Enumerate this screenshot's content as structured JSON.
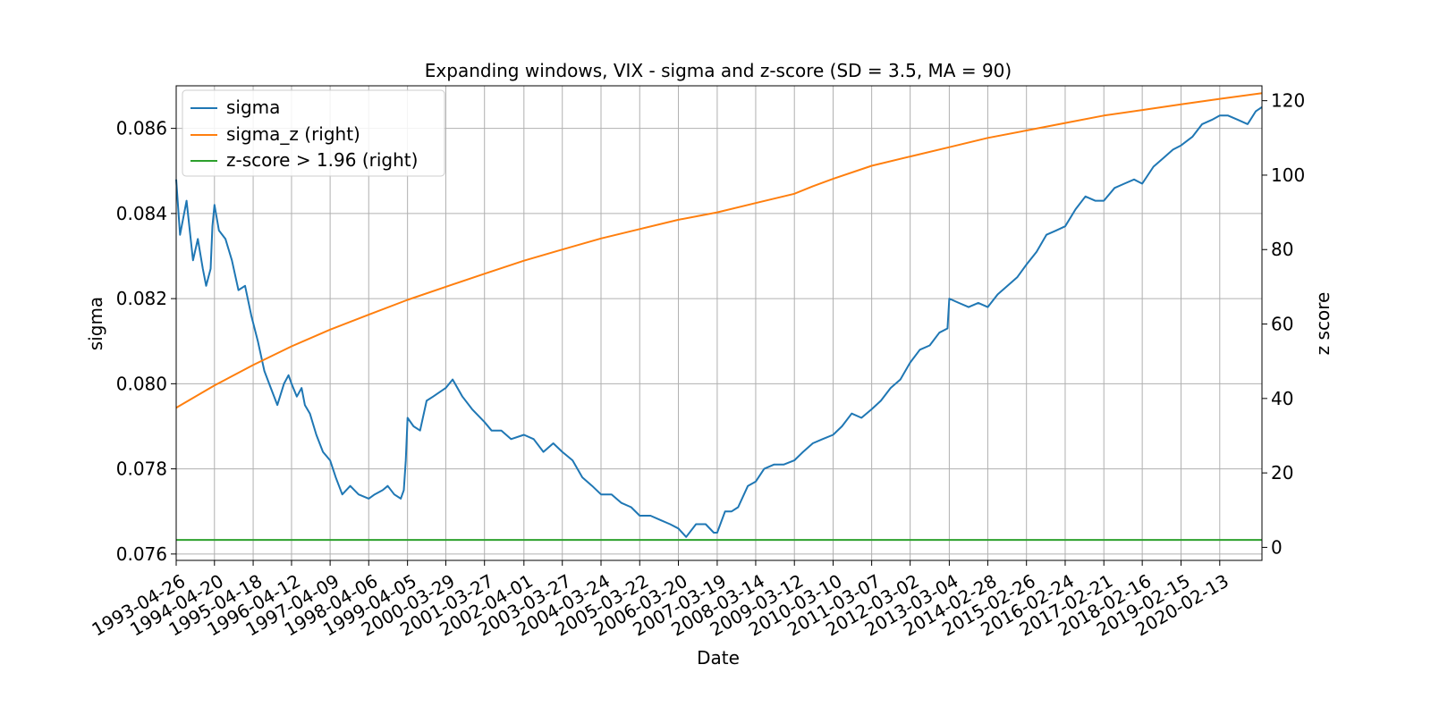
{
  "chart_data": {
    "type": "line",
    "title": "Expanding windows, VIX - sigma and z-score (SD = 3.5, MA = 90)",
    "xlabel": "Date",
    "ylabel": "sigma",
    "ylabel_right": "z score",
    "grid": true,
    "legend_position": "upper-left",
    "xlim": [
      "1993-04-26",
      "2021-03-15"
    ],
    "ylim": [
      0.07585,
      0.087
    ],
    "ylim_right": [
      -3.5,
      124
    ],
    "x_ticks": [
      "1993-04-26",
      "1994-04-20",
      "1995-04-18",
      "1996-04-12",
      "1997-04-09",
      "1998-04-06",
      "1999-04-05",
      "2000-03-29",
      "2001-03-27",
      "2002-04-01",
      "2003-03-27",
      "2004-03-24",
      "2005-03-22",
      "2006-03-20",
      "2007-03-19",
      "2008-03-14",
      "2009-03-12",
      "2010-03-10",
      "2011-03-07",
      "2012-03-02",
      "2013-03-04",
      "2014-02-28",
      "2015-02-26",
      "2016-02-24",
      "2017-02-21",
      "2018-02-16",
      "2019-02-15",
      "2020-02-13"
    ],
    "y_ticks": [
      "0.076",
      "0.078",
      "0.080",
      "0.082",
      "0.084",
      "0.086"
    ],
    "y_ticks_right": [
      "0",
      "20",
      "40",
      "60",
      "80",
      "100",
      "120"
    ],
    "series": [
      {
        "name": "sigma",
        "axis": "left",
        "color": "#1f77b4",
        "x": [
          "1993-04-26",
          "1993-06-01",
          "1993-08-01",
          "1993-10-01",
          "1993-11-15",
          "1994-01-01",
          "1994-02-01",
          "1994-03-15",
          "1994-04-01",
          "1994-04-20",
          "1994-06-01",
          "1994-08-01",
          "1994-10-01",
          "1994-12-01",
          "1995-02-01",
          "1995-04-01",
          "1995-06-01",
          "1995-08-01",
          "1995-10-01",
          "1995-12-01",
          "1996-02-01",
          "1996-03-15",
          "1996-04-12",
          "1996-06-01",
          "1996-07-15",
          "1996-08-15",
          "1996-10-01",
          "1996-12-01",
          "1997-02-01",
          "1997-04-09",
          "1997-06-01",
          "1997-08-01",
          "1997-10-15",
          "1998-01-01",
          "1998-04-06",
          "1998-06-01",
          "1998-08-15",
          "1998-10-01",
          "1998-12-01",
          "1999-02-01",
          "1999-03-01",
          "1999-03-20",
          "1999-04-05",
          "1999-06-01",
          "1999-08-01",
          "1999-10-01",
          "1999-12-01",
          "2000-03-29",
          "2000-06-01",
          "2000-09-01",
          "2000-12-01",
          "2001-03-27",
          "2001-06-01",
          "2001-09-01",
          "2001-12-01",
          "2002-04-01",
          "2002-07-01",
          "2002-10-01",
          "2003-01-01",
          "2003-03-27",
          "2003-07-01",
          "2003-10-01",
          "2004-01-01",
          "2004-03-24",
          "2004-07-01",
          "2004-10-01",
          "2005-01-01",
          "2005-03-22",
          "2005-07-01",
          "2005-10-01",
          "2006-01-01",
          "2006-03-20",
          "2006-06-01",
          "2006-09-01",
          "2006-12-01",
          "2007-02-15",
          "2007-03-19",
          "2007-06-01",
          "2007-08-01",
          "2007-10-01",
          "2008-01-01",
          "2008-03-14",
          "2008-06-01",
          "2008-09-01",
          "2008-12-01",
          "2009-03-12",
          "2009-06-01",
          "2009-09-01",
          "2009-12-01",
          "2010-03-10",
          "2010-06-01",
          "2010-09-01",
          "2010-12-01",
          "2011-03-07",
          "2011-06-01",
          "2011-09-01",
          "2011-12-01",
          "2012-03-02",
          "2012-06-01",
          "2012-09-01",
          "2012-12-01",
          "2013-02-15",
          "2013-03-04",
          "2013-06-01",
          "2013-09-01",
          "2013-12-01",
          "2014-02-28",
          "2014-06-01",
          "2014-09-01",
          "2014-12-01",
          "2015-02-26",
          "2015-06-01",
          "2015-09-01",
          "2015-12-01",
          "2016-02-24",
          "2016-06-01",
          "2016-09-01",
          "2016-12-01",
          "2017-02-21",
          "2017-06-01",
          "2017-09-01",
          "2017-12-01",
          "2018-02-16",
          "2018-06-01",
          "2018-09-01",
          "2018-12-01",
          "2019-02-15",
          "2019-06-01",
          "2019-09-01",
          "2019-12-01",
          "2020-02-13",
          "2020-05-01",
          "2020-08-01",
          "2020-11-01",
          "2021-01-15",
          "2021-03-15"
        ],
        "values": [
          0.0848,
          0.0835,
          0.0843,
          0.0829,
          0.0834,
          0.0827,
          0.0823,
          0.0827,
          0.0837,
          0.0842,
          0.0836,
          0.0834,
          0.0829,
          0.0822,
          0.0823,
          0.0816,
          0.081,
          0.0803,
          0.0799,
          0.0795,
          0.08,
          0.0802,
          0.08,
          0.0797,
          0.0799,
          0.0795,
          0.0793,
          0.0788,
          0.0784,
          0.0782,
          0.0778,
          0.0774,
          0.0776,
          0.0774,
          0.0773,
          0.0774,
          0.0775,
          0.0776,
          0.0774,
          0.0773,
          0.0775,
          0.0782,
          0.0792,
          0.079,
          0.0789,
          0.0796,
          0.0797,
          0.0799,
          0.0801,
          0.0797,
          0.0794,
          0.0791,
          0.0789,
          0.0789,
          0.0787,
          0.0788,
          0.0787,
          0.0784,
          0.0786,
          0.0784,
          0.0782,
          0.0778,
          0.0776,
          0.0774,
          0.0774,
          0.0772,
          0.0771,
          0.0769,
          0.0769,
          0.0768,
          0.0767,
          0.0766,
          0.0764,
          0.0767,
          0.0767,
          0.0765,
          0.0765,
          0.077,
          0.077,
          0.0771,
          0.0776,
          0.0777,
          0.078,
          0.0781,
          0.0781,
          0.0782,
          0.0784,
          0.0786,
          0.0787,
          0.0788,
          0.079,
          0.0793,
          0.0792,
          0.0794,
          0.0796,
          0.0799,
          0.0801,
          0.0805,
          0.0808,
          0.0809,
          0.0812,
          0.0813,
          0.082,
          0.0819,
          0.0818,
          0.0819,
          0.0818,
          0.0821,
          0.0823,
          0.0825,
          0.0828,
          0.0831,
          0.0835,
          0.0836,
          0.0837,
          0.0841,
          0.0844,
          0.0843,
          0.0843,
          0.0846,
          0.0847,
          0.0848,
          0.0847,
          0.0851,
          0.0853,
          0.0855,
          0.0856,
          0.0858,
          0.0861,
          0.0862,
          0.0863,
          0.0863,
          0.0862,
          0.0861,
          0.0864,
          0.0865
        ]
      },
      {
        "name": "sigma_z (right)",
        "axis": "right",
        "color": "#ff7f0e",
        "x": [
          "1993-04-26",
          "1994-04-20",
          "1995-04-18",
          "1996-04-12",
          "1997-04-09",
          "1998-04-06",
          "1999-04-05",
          "2000-03-29",
          "2001-03-27",
          "2002-04-01",
          "2003-03-27",
          "2004-03-24",
          "2005-03-22",
          "2006-03-20",
          "2007-03-19",
          "2008-03-14",
          "2009-03-12",
          "2009-09-01",
          "2010-03-10",
          "2011-03-07",
          "2012-03-02",
          "2013-03-04",
          "2014-02-28",
          "2015-02-26",
          "2016-02-24",
          "2017-02-21",
          "2018-02-16",
          "2019-02-15",
          "2020-02-13",
          "2021-03-15"
        ],
        "values": [
          37.5,
          43.5,
          49.0,
          54.0,
          58.5,
          62.5,
          66.5,
          70.0,
          73.5,
          77.0,
          80.0,
          83.0,
          85.5,
          88.0,
          90.0,
          92.5,
          95.0,
          97.0,
          99.0,
          102.5,
          105.0,
          107.5,
          110.0,
          112.0,
          114.0,
          116.0,
          117.5,
          119.0,
          120.5,
          122.0
        ]
      },
      {
        "name": "z-score > 1.96 (right)",
        "axis": "right",
        "color": "#2ca02c",
        "x": [
          "1993-04-26",
          "2021-03-15"
        ],
        "values": [
          2.0,
          2.0
        ]
      }
    ]
  }
}
